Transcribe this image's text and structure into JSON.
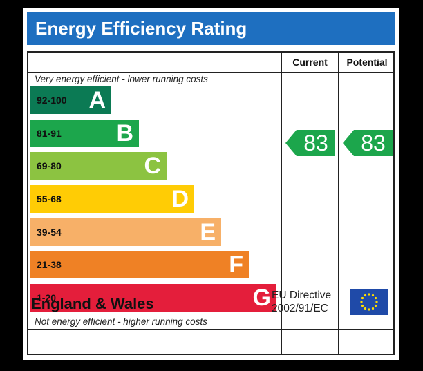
{
  "title": "Energy Efficiency Rating",
  "columns": {
    "current": "Current",
    "potential": "Potential"
  },
  "top_note": "Very energy efficient - lower running costs",
  "bottom_note": "Not energy efficient - higher running costs",
  "bands": [
    {
      "range": "92-100",
      "letter": "A",
      "color": "#0b7a54"
    },
    {
      "range": "81-91",
      "letter": "B",
      "color": "#1ca64c"
    },
    {
      "range": "69-80",
      "letter": "C",
      "color": "#8cc341"
    },
    {
      "range": "55-68",
      "letter": "D",
      "color": "#ffcc05"
    },
    {
      "range": "39-54",
      "letter": "E",
      "color": "#f7b068"
    },
    {
      "range": "21-38",
      "letter": "F",
      "color": "#ef8125"
    },
    {
      "range": "1-20",
      "letter": "G",
      "color": "#e41e3b"
    }
  ],
  "current_rating": "83",
  "potential_rating": "83",
  "rating_color": "#1ca64c",
  "region": "England & Wales",
  "directive": {
    "line1": "EU Directive",
    "line2": "2002/91/EC"
  },
  "colors": {
    "title_bar": "#1e6fc0",
    "eu_flag": "#1f4aa8",
    "eu_stars": "#ffde00"
  }
}
